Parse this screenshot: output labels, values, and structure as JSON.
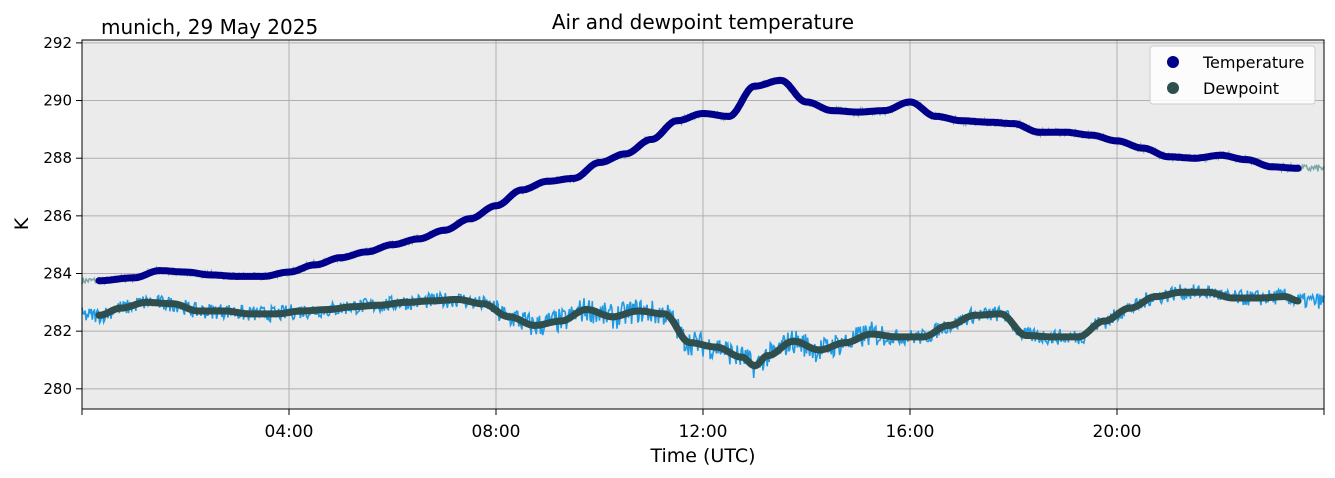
{
  "chart_data": {
    "type": "line",
    "title": "Air and dewpoint temperature",
    "subtitle": "munich, 29 May 2025",
    "xlabel": "Time (UTC)",
    "ylabel": "K",
    "xlim": [
      0,
      24
    ],
    "ylim": [
      279.3,
      292.1
    ],
    "x_ticks": [
      {
        "value": 4,
        "label": "04:00"
      },
      {
        "value": 8,
        "label": "08:00"
      },
      {
        "value": 12,
        "label": "12:00"
      },
      {
        "value": 16,
        "label": "16:00"
      },
      {
        "value": 20,
        "label": "20:00"
      }
    ],
    "y_ticks": [
      {
        "value": 280,
        "label": "280"
      },
      {
        "value": 282,
        "label": "282"
      },
      {
        "value": 284,
        "label": "284"
      },
      {
        "value": 286,
        "label": "286"
      },
      {
        "value": 288,
        "label": "288"
      },
      {
        "value": 290,
        "label": "290"
      },
      {
        "value": 292,
        "label": "292"
      }
    ],
    "grid": true,
    "legend_position": "top-right",
    "colors": {
      "plot_bg": "#ebebeb",
      "grid": "#b0b0b0",
      "temperature": "#00008b",
      "temperature_raw": "#7fa8a8",
      "dewpoint": "#2f4f4f",
      "dewpoint_raw": "#1f9be6"
    },
    "series": [
      {
        "name": "Temperature",
        "color": "#00008b",
        "x": [
          0.33,
          1.0,
          1.5,
          2.0,
          2.5,
          3.0,
          3.5,
          4.0,
          4.5,
          5.0,
          5.5,
          6.0,
          6.5,
          7.0,
          7.5,
          8.0,
          8.5,
          9.0,
          9.5,
          10.0,
          10.5,
          11.0,
          11.5,
          12.0,
          12.5,
          13.0,
          13.5,
          14.0,
          14.5,
          15.0,
          15.5,
          16.0,
          16.5,
          17.0,
          17.5,
          18.0,
          18.5,
          19.0,
          19.5,
          20.0,
          20.5,
          21.0,
          21.5,
          22.0,
          22.5,
          23.0,
          23.5
        ],
        "values": [
          283.75,
          283.85,
          284.1,
          284.05,
          283.95,
          283.9,
          283.9,
          284.05,
          284.3,
          284.55,
          284.75,
          285.0,
          285.2,
          285.5,
          285.9,
          286.35,
          286.9,
          287.2,
          287.3,
          287.85,
          288.15,
          288.65,
          289.3,
          289.55,
          289.45,
          290.5,
          290.7,
          289.95,
          289.65,
          289.6,
          289.65,
          289.95,
          289.45,
          289.3,
          289.25,
          289.2,
          288.9,
          288.9,
          288.8,
          288.6,
          288.35,
          288.05,
          288.0,
          288.1,
          287.95,
          287.7,
          287.65
        ]
      },
      {
        "name": "Dewpoint",
        "color": "#2f4f4f",
        "x": [
          0.33,
          0.75,
          1.25,
          1.75,
          2.25,
          2.75,
          3.25,
          3.75,
          4.25,
          4.75,
          5.25,
          5.75,
          6.25,
          6.75,
          7.25,
          7.75,
          8.25,
          8.75,
          9.25,
          9.75,
          10.25,
          10.75,
          11.25,
          11.75,
          12.25,
          12.75,
          13.0,
          13.25,
          13.75,
          14.25,
          14.75,
          15.25,
          15.75,
          16.25,
          16.75,
          17.25,
          17.75,
          18.25,
          18.75,
          19.25,
          19.75,
          20.25,
          20.75,
          21.25,
          21.75,
          22.25,
          22.75,
          23.25,
          23.5
        ],
        "values": [
          282.55,
          282.8,
          283.0,
          282.95,
          282.7,
          282.7,
          282.6,
          282.6,
          282.7,
          282.75,
          282.85,
          282.9,
          283.0,
          283.05,
          283.1,
          282.95,
          282.5,
          282.2,
          282.35,
          282.75,
          282.5,
          282.7,
          282.6,
          281.6,
          281.45,
          281.1,
          280.8,
          281.15,
          281.65,
          281.35,
          281.6,
          281.9,
          281.8,
          281.8,
          282.2,
          282.55,
          282.6,
          281.85,
          281.8,
          281.8,
          282.35,
          282.8,
          283.2,
          283.35,
          283.35,
          283.15,
          283.15,
          283.2,
          283.05
        ]
      }
    ]
  }
}
